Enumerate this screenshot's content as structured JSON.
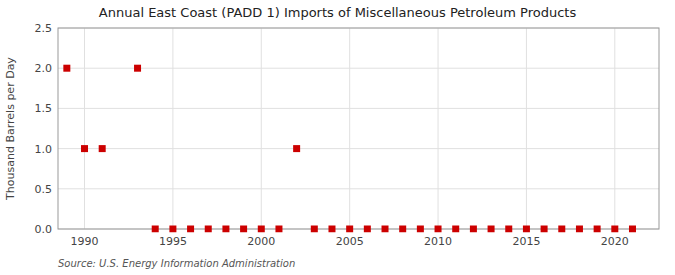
{
  "chart_data": {
    "type": "scatter",
    "title": "Annual East Coast (PADD 1) Imports of Miscellaneous Petroleum Products",
    "y_label": "Thousand Barrels per Day",
    "annotations": [
      "Source: U.S. Energy Information Administration"
    ],
    "color": "#cc0000",
    "marker": "square",
    "grid": true,
    "xlim": [
      1988.5,
      2022.5
    ],
    "ylim": [
      0.0,
      2.5
    ],
    "xticks": [
      1990,
      1995,
      2000,
      2005,
      2010,
      2015,
      2020
    ],
    "yticks": [
      {
        "value": 0,
        "label": "0.0"
      },
      0.5,
      {
        "value": 1,
        "label": "1.0"
      },
      1.5,
      {
        "value": 2,
        "label": "2.0"
      },
      2.5
    ],
    "x": [
      1989,
      1990,
      1991,
      1993,
      1994,
      1995,
      1996,
      1997,
      1998,
      1999,
      2000,
      2001,
      2002,
      2003,
      2004,
      2005,
      2006,
      2007,
      2008,
      2009,
      2010,
      2011,
      2012,
      2013,
      2014,
      2015,
      2016,
      2017,
      2018,
      2019,
      2020,
      2021
    ],
    "values": [
      2.0,
      1.0,
      1.0,
      2.0,
      0.0,
      0.0,
      0.0,
      0.0,
      0.0,
      0.0,
      0.0,
      0.0,
      1.0,
      0.0,
      0.0,
      0.0,
      0.0,
      0.0,
      0.0,
      0.0,
      0.0,
      0.0,
      0.0,
      0.0,
      0.0,
      0.0,
      0.0,
      0.0,
      0.0,
      0.0,
      0.0,
      0.0
    ]
  }
}
